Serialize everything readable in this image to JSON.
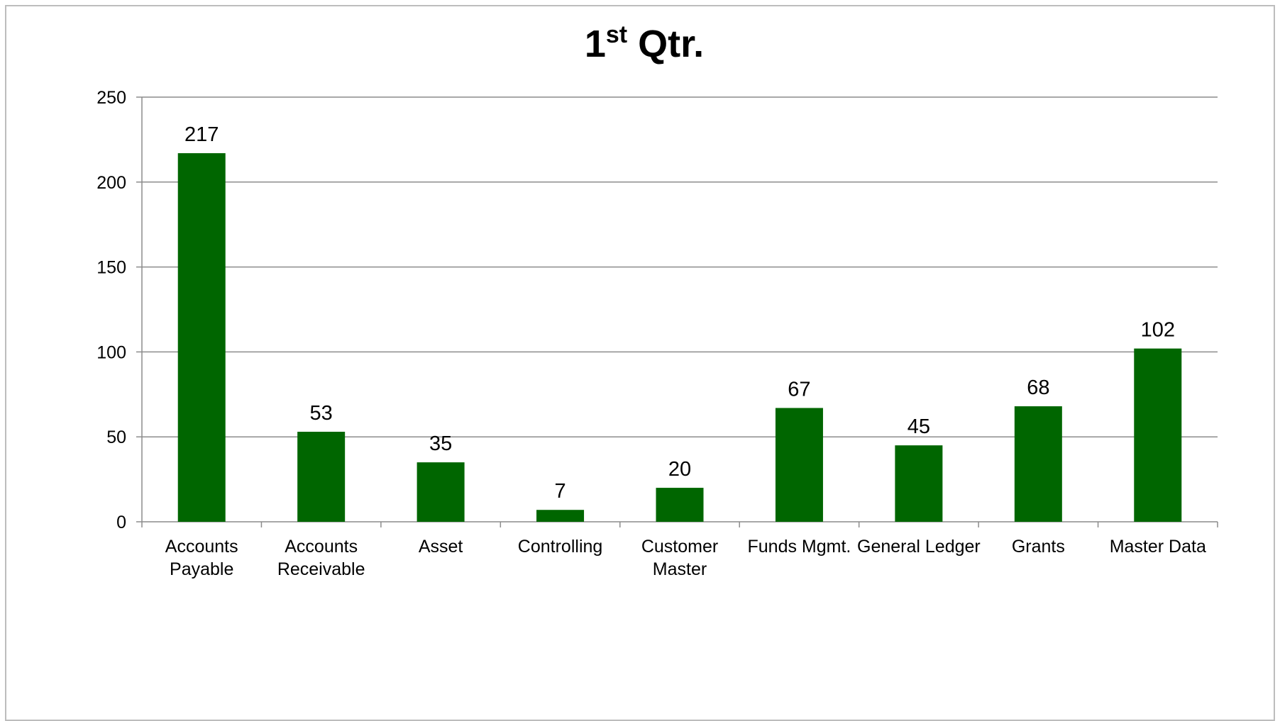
{
  "chart_data": {
    "type": "bar",
    "title": "1",
    "title_superscript": "st",
    "title_suffix": " Qtr.",
    "categories": [
      [
        "Accounts",
        "Payable"
      ],
      [
        "Accounts",
        "Receivable"
      ],
      [
        "Asset"
      ],
      [
        "Controlling"
      ],
      [
        "Customer",
        "Master"
      ],
      [
        "Funds Mgmt."
      ],
      [
        "General Ledger"
      ],
      [
        "Grants"
      ],
      [
        "Master Data"
      ]
    ],
    "values": [
      217,
      53,
      35,
      7,
      20,
      67,
      45,
      68,
      102
    ],
    "ylim": [
      0,
      250
    ],
    "yticks": [
      0,
      50,
      100,
      150,
      200,
      250
    ],
    "xlabel": "",
    "ylabel": "",
    "grid": true,
    "legend": "none",
    "bar_color": "#006600",
    "grid_color": "#8c8c8c",
    "axis_color": "#8c8c8c"
  }
}
